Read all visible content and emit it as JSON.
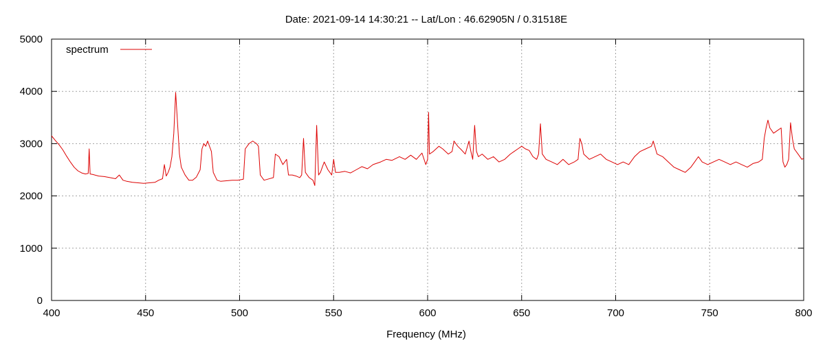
{
  "chart_data": {
    "type": "line",
    "title": "Date: 2021-09-14 14:30:21  --  Lat/Lon : 46.62905N / 0.31518E",
    "xlabel": "Frequency (MHz)",
    "ylabel": "",
    "xlim": [
      400,
      800
    ],
    "ylim": [
      0,
      5000
    ],
    "x_ticks": [
      400,
      450,
      500,
      550,
      600,
      650,
      700,
      750,
      800
    ],
    "y_ticks": [
      0,
      1000,
      2000,
      3000,
      4000,
      5000
    ],
    "grid": true,
    "legend_position": "top-left",
    "series": [
      {
        "name": "spectrum",
        "color": "#dd0000",
        "points": [
          [
            400,
            3150
          ],
          [
            402,
            3060
          ],
          [
            404,
            2980
          ],
          [
            406,
            2880
          ],
          [
            408,
            2760
          ],
          [
            410,
            2650
          ],
          [
            412,
            2550
          ],
          [
            414,
            2480
          ],
          [
            416,
            2440
          ],
          [
            418,
            2420
          ],
          [
            419.5,
            2430
          ],
          [
            420,
            2900
          ],
          [
            420.5,
            2420
          ],
          [
            422,
            2410
          ],
          [
            425,
            2380
          ],
          [
            428,
            2370
          ],
          [
            431,
            2350
          ],
          [
            434,
            2330
          ],
          [
            436,
            2400
          ],
          [
            438,
            2300
          ],
          [
            440,
            2280
          ],
          [
            443,
            2260
          ],
          [
            446,
            2250
          ],
          [
            449,
            2240
          ],
          [
            452,
            2250
          ],
          [
            455,
            2260
          ],
          [
            457,
            2300
          ],
          [
            459,
            2330
          ],
          [
            460,
            2600
          ],
          [
            461,
            2380
          ],
          [
            462,
            2450
          ],
          [
            463,
            2550
          ],
          [
            464,
            2750
          ],
          [
            465,
            3200
          ],
          [
            466,
            3980
          ],
          [
            467,
            3400
          ],
          [
            468,
            2800
          ],
          [
            469,
            2550
          ],
          [
            471,
            2400
          ],
          [
            473,
            2300
          ],
          [
            475,
            2300
          ],
          [
            477,
            2360
          ],
          [
            479,
            2500
          ],
          [
            480,
            2900
          ],
          [
            481,
            3000
          ],
          [
            482,
            2950
          ],
          [
            483,
            3050
          ],
          [
            484,
            2950
          ],
          [
            485,
            2850
          ],
          [
            486,
            2450
          ],
          [
            488,
            2300
          ],
          [
            490,
            2280
          ],
          [
            493,
            2290
          ],
          [
            496,
            2300
          ],
          [
            499,
            2300
          ],
          [
            502,
            2320
          ],
          [
            503,
            2900
          ],
          [
            505,
            3000
          ],
          [
            507,
            3050
          ],
          [
            509,
            3000
          ],
          [
            510,
            2950
          ],
          [
            511,
            2400
          ],
          [
            513,
            2300
          ],
          [
            515,
            2320
          ],
          [
            518,
            2350
          ],
          [
            519,
            2800
          ],
          [
            521,
            2750
          ],
          [
            523,
            2600
          ],
          [
            525,
            2700
          ],
          [
            526,
            2400
          ],
          [
            528,
            2400
          ],
          [
            530,
            2380
          ],
          [
            532,
            2350
          ],
          [
            533,
            2400
          ],
          [
            534,
            3100
          ],
          [
            535,
            2450
          ],
          [
            537,
            2350
          ],
          [
            539,
            2300
          ],
          [
            540,
            2200
          ],
          [
            541,
            3350
          ],
          [
            542,
            2400
          ],
          [
            543,
            2450
          ],
          [
            544,
            2550
          ],
          [
            545,
            2650
          ],
          [
            547,
            2500
          ],
          [
            548,
            2450
          ],
          [
            549,
            2400
          ],
          [
            550,
            2700
          ],
          [
            551,
            2450
          ],
          [
            553,
            2450
          ],
          [
            556,
            2470
          ],
          [
            559,
            2440
          ],
          [
            562,
            2500
          ],
          [
            565,
            2560
          ],
          [
            568,
            2520
          ],
          [
            571,
            2600
          ],
          [
            575,
            2650
          ],
          [
            578,
            2700
          ],
          [
            581,
            2680
          ],
          [
            585,
            2750
          ],
          [
            588,
            2700
          ],
          [
            591,
            2780
          ],
          [
            594,
            2700
          ],
          [
            597,
            2820
          ],
          [
            599,
            2600
          ],
          [
            600,
            2700
          ],
          [
            600.5,
            3600
          ],
          [
            601,
            2800
          ],
          [
            603,
            2850
          ],
          [
            606,
            2950
          ],
          [
            608,
            2900
          ],
          [
            611,
            2800
          ],
          [
            613,
            2850
          ],
          [
            614,
            3050
          ],
          [
            616,
            2950
          ],
          [
            618,
            2880
          ],
          [
            620,
            2800
          ],
          [
            622,
            3050
          ],
          [
            623,
            2850
          ],
          [
            624,
            2700
          ],
          [
            625,
            3350
          ],
          [
            626,
            2850
          ],
          [
            627,
            2750
          ],
          [
            629,
            2800
          ],
          [
            632,
            2700
          ],
          [
            635,
            2750
          ],
          [
            638,
            2650
          ],
          [
            641,
            2700
          ],
          [
            644,
            2800
          ],
          [
            646,
            2850
          ],
          [
            648,
            2900
          ],
          [
            650,
            2950
          ],
          [
            652,
            2900
          ],
          [
            654,
            2870
          ],
          [
            656,
            2750
          ],
          [
            658,
            2700
          ],
          [
            659,
            2800
          ],
          [
            660,
            3380
          ],
          [
            661,
            2800
          ],
          [
            663,
            2700
          ],
          [
            666,
            2650
          ],
          [
            669,
            2600
          ],
          [
            672,
            2700
          ],
          [
            675,
            2600
          ],
          [
            678,
            2650
          ],
          [
            680,
            2700
          ],
          [
            681,
            3100
          ],
          [
            682,
            3000
          ],
          [
            683,
            2800
          ],
          [
            686,
            2700
          ],
          [
            689,
            2750
          ],
          [
            692,
            2800
          ],
          [
            695,
            2700
          ],
          [
            698,
            2650
          ],
          [
            701,
            2600
          ],
          [
            704,
            2650
          ],
          [
            707,
            2600
          ],
          [
            710,
            2750
          ],
          [
            713,
            2850
          ],
          [
            716,
            2900
          ],
          [
            719,
            2950
          ],
          [
            720,
            3050
          ],
          [
            722,
            2800
          ],
          [
            725,
            2750
          ],
          [
            728,
            2650
          ],
          [
            731,
            2550
          ],
          [
            734,
            2500
          ],
          [
            737,
            2450
          ],
          [
            740,
            2550
          ],
          [
            742,
            2650
          ],
          [
            744,
            2750
          ],
          [
            746,
            2650
          ],
          [
            749,
            2600
          ],
          [
            752,
            2650
          ],
          [
            755,
            2700
          ],
          [
            758,
            2650
          ],
          [
            761,
            2600
          ],
          [
            764,
            2650
          ],
          [
            767,
            2600
          ],
          [
            770,
            2550
          ],
          [
            773,
            2620
          ],
          [
            776,
            2650
          ],
          [
            778,
            2700
          ],
          [
            779,
            3100
          ],
          [
            780,
            3300
          ],
          [
            781,
            3450
          ],
          [
            782,
            3300
          ],
          [
            784,
            3200
          ],
          [
            786,
            3250
          ],
          [
            788,
            3300
          ],
          [
            789,
            2650
          ],
          [
            790,
            2550
          ],
          [
            791,
            2600
          ],
          [
            792,
            2700
          ],
          [
            793,
            3400
          ],
          [
            794,
            3100
          ],
          [
            795,
            2900
          ],
          [
            797,
            2800
          ],
          [
            799,
            2700
          ],
          [
            800,
            2720
          ]
        ]
      }
    ]
  }
}
